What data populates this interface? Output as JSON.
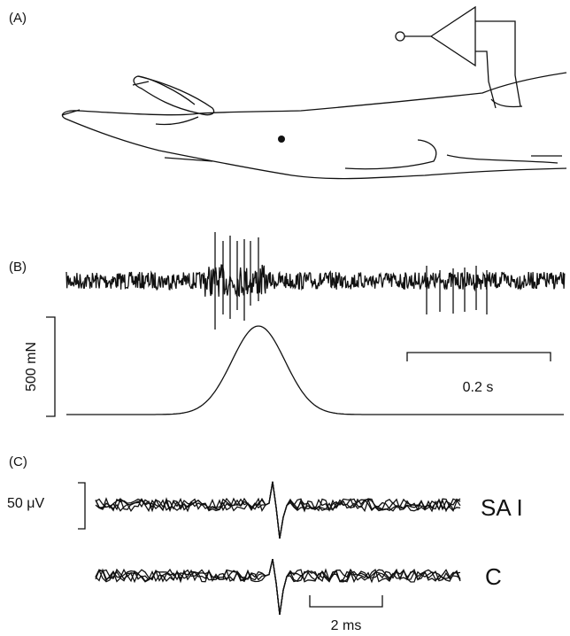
{
  "panels": [
    {
      "label": "(A)"
    },
    {
      "label": "(B)",
      "force_scale": "500 mN",
      "time_scale": "0.2 s"
    },
    {
      "label": "(C)",
      "voltage_scale": "50 μV",
      "traces": [
        "SA I",
        "C"
      ],
      "time_scale": "2 ms"
    }
  ]
}
